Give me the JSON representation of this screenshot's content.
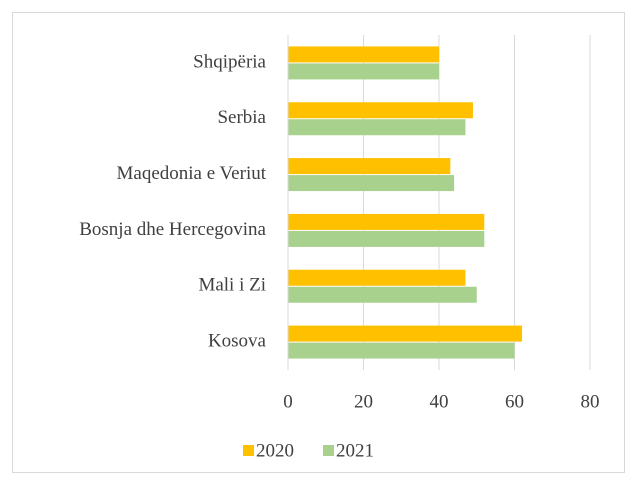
{
  "chart_data": {
    "type": "barh",
    "categories": [
      "Shqipëria",
      "Serbia",
      "Maqedonia e Veriut",
      "Bosnja dhe Hercegovina",
      "Mali i Zi",
      "Kosova"
    ],
    "series": [
      {
        "name": "2020",
        "color": "#ffc000",
        "values": [
          40,
          49,
          43,
          52,
          47,
          62
        ]
      },
      {
        "name": "2021",
        "color": "#a9d18e",
        "values": [
          40,
          47,
          44,
          52,
          50,
          60
        ]
      }
    ],
    "xlim": [
      0,
      80
    ],
    "xticks": [
      0,
      20,
      40,
      60,
      80
    ],
    "grid": true,
    "legend": "bottom"
  }
}
